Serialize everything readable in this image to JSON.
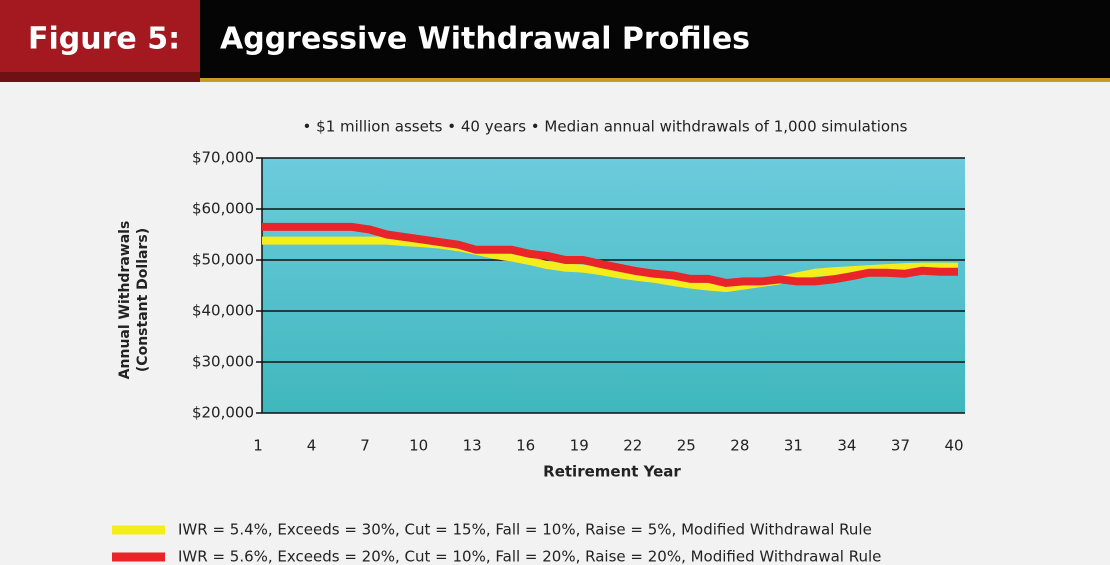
{
  "chart_data": {
    "type": "line",
    "figure_label": "Figure 5:",
    "title": "Aggressive Withdrawal Profiles",
    "subtitle": "• $1 million assets  • 40 years   • Median annual withdrawals of 1,000 simulations",
    "ylabel": [
      "Annual Withdrawals",
      "(Constant Dollars)"
    ],
    "xlabel": "Retirement Year",
    "x": [
      1,
      2,
      3,
      4,
      5,
      6,
      7,
      8,
      9,
      10,
      11,
      12,
      13,
      14,
      15,
      16,
      17,
      18,
      19,
      20,
      21,
      22,
      23,
      24,
      25,
      26,
      27,
      28,
      29,
      30,
      31,
      32,
      33,
      34,
      35,
      36,
      37,
      38,
      39,
      40
    ],
    "xlim": [
      1,
      40
    ],
    "xticks": [
      1,
      4,
      7,
      10,
      13,
      16,
      19,
      22,
      25,
      28,
      31,
      34,
      37,
      40
    ],
    "ylim": [
      20000,
      70000
    ],
    "yticks": [
      {
        "value": 20000,
        "label": "$20,000"
      },
      {
        "value": 30000,
        "label": "$30,000"
      },
      {
        "value": 40000,
        "label": "$40,000"
      },
      {
        "value": 50000,
        "label": "$50,000"
      },
      {
        "value": 60000,
        "label": "$60,000"
      },
      {
        "value": 70000,
        "label": "$70,000"
      }
    ],
    "grid": true,
    "series": [
      {
        "name": "IWR = 5.4%, Exceeds = 30%, Cut = 15%, Fall = 10%, Raise = 5%, Modified Withdrawal Rule",
        "color": "#f5ec1c",
        "values": [
          53800,
          53800,
          53800,
          53800,
          53800,
          53800,
          53800,
          53800,
          53500,
          53300,
          53000,
          52500,
          51800,
          51000,
          50500,
          49800,
          49000,
          48500,
          48300,
          47800,
          47200,
          46700,
          46300,
          45700,
          45200,
          44800,
          44500,
          45000,
          45500,
          46000,
          46800,
          47500,
          47800,
          48000,
          48200,
          48400,
          48600,
          48700,
          48700,
          48700
        ]
      },
      {
        "name": "IWR  = 5.6%, Exceeds = 20%, Cut = 10%, Fall = 20%, Raise = 20%, Modified Withdrawal Rule",
        "color": "#e8262a",
        "values": [
          56500,
          56500,
          56500,
          56500,
          56500,
          56500,
          56000,
          55000,
          54500,
          54000,
          53500,
          53000,
          52000,
          52000,
          52000,
          51200,
          50800,
          50000,
          50000,
          49200,
          48500,
          47800,
          47300,
          47000,
          46300,
          46300,
          45500,
          45800,
          45800,
          46200,
          45800,
          45800,
          46200,
          46800,
          47500,
          47500,
          47300,
          47900,
          47700,
          47700
        ]
      }
    ]
  }
}
